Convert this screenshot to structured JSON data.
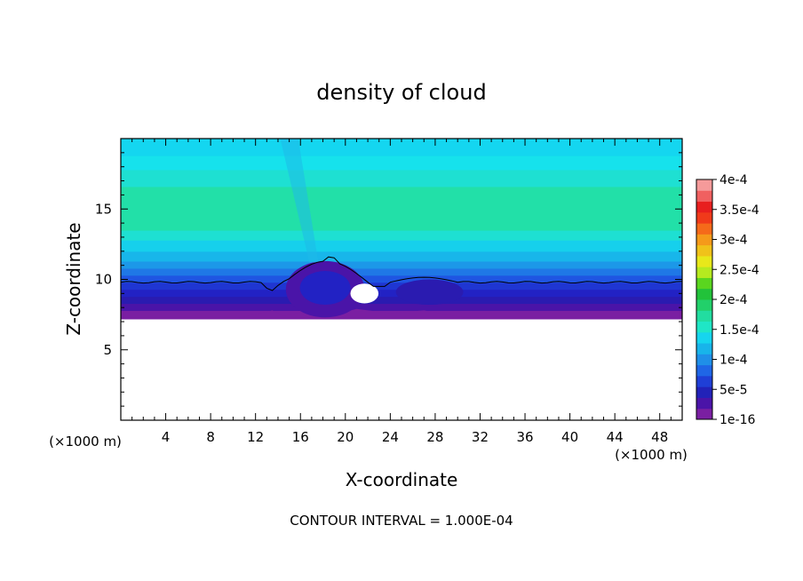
{
  "chart_data": {
    "type": "heatmap",
    "title": "density of cloud",
    "xlabel": "X-coordinate",
    "ylabel": "Z-coordinate",
    "x_unit": "(×1000 m)",
    "x_unit_right": "(×1000 m)",
    "xlim": [
      0,
      50
    ],
    "ylim": [
      0,
      20
    ],
    "x_ticks": [
      4,
      8,
      12,
      16,
      20,
      24,
      28,
      32,
      36,
      40,
      44,
      48
    ],
    "y_ticks": [
      5,
      10,
      15
    ],
    "footer": "CONTOUR INTERVAL = 1.000E-04",
    "colorbar": {
      "labels": [
        "1e-16",
        "5e-5",
        "1e-4",
        "1.5e-4",
        "2e-4",
        "2.5e-4",
        "3e-4",
        "3.5e-4",
        "4e-4"
      ],
      "colors": [
        "#7a1fa2",
        "#4a14a8",
        "#2222b8",
        "#1f3fd6",
        "#1f66e6",
        "#1f8fe8",
        "#18b4ea",
        "#16d5ee",
        "#1fe6c6",
        "#22dda0",
        "#22d06a",
        "#22c23a",
        "#5ad61f",
        "#b6ea1f",
        "#e8e81a",
        "#f0c21a",
        "#f59a1a",
        "#f56a1a",
        "#f03a1a",
        "#e81f1f",
        "#f06060",
        "#f59a9a"
      ]
    },
    "field_bands": [
      {
        "z_bottom": 7.2,
        "z_top": 7.8,
        "color": "#7a1fa2"
      },
      {
        "z_bottom": 7.8,
        "z_top": 8.3,
        "color": "#4a14a8"
      },
      {
        "z_bottom": 8.3,
        "z_top": 8.8,
        "color": "#2a1bb0"
      },
      {
        "z_bottom": 8.8,
        "z_top": 9.3,
        "color": "#2222c4"
      },
      {
        "z_bottom": 9.3,
        "z_top": 9.8,
        "color": "#1f36d2"
      },
      {
        "z_bottom": 9.8,
        "z_top": 10.3,
        "color": "#1f55e2"
      },
      {
        "z_bottom": 10.3,
        "z_top": 10.8,
        "color": "#1f78e6"
      },
      {
        "z_bottom": 10.8,
        "z_top": 11.3,
        "color": "#1c98e8"
      },
      {
        "z_bottom": 11.3,
        "z_top": 12.0,
        "color": "#18b6ea"
      },
      {
        "z_bottom": 12.0,
        "z_top": 12.8,
        "color": "#16d0ec"
      },
      {
        "z_bottom": 12.8,
        "z_top": 13.5,
        "color": "#1ee0d2"
      },
      {
        "z_bottom": 13.5,
        "z_top": 16.6,
        "color": "#22e0a8"
      },
      {
        "z_bottom": 16.6,
        "z_top": 17.8,
        "color": "#1ee0d2"
      },
      {
        "z_bottom": 17.8,
        "z_top": 18.8,
        "color": "#16e2ec"
      },
      {
        "z_bottom": 18.8,
        "z_top": 20.0,
        "color": "#14d6f0"
      }
    ],
    "contour_line_z": 9.8
  }
}
